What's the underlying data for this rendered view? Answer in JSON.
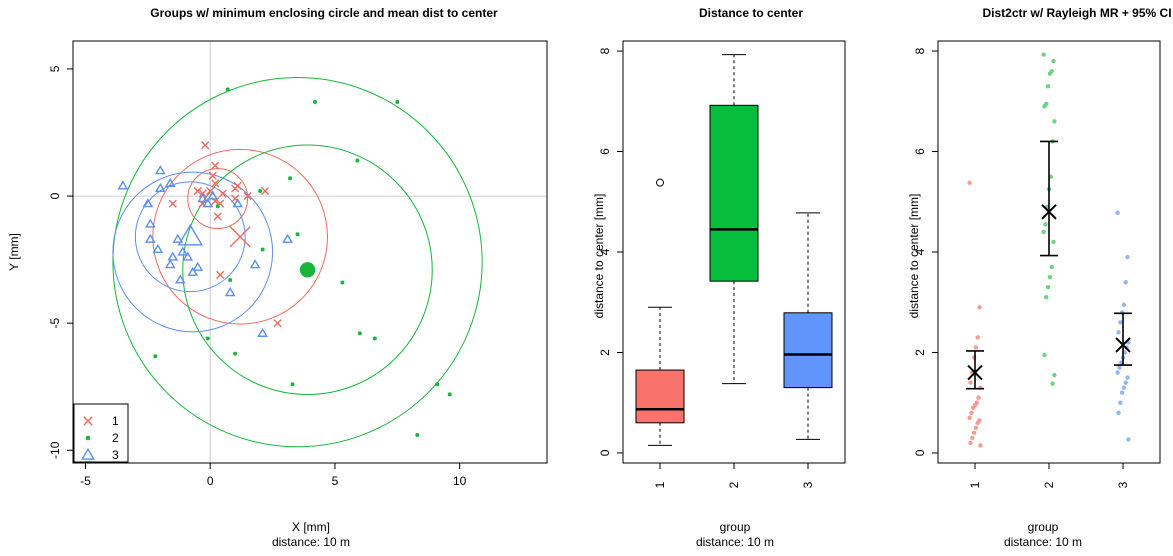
{
  "chart_data": [
    {
      "type": "scatter",
      "title": "Groups w/ minimum enclosing circle and mean dist to center",
      "xlabel": "X [mm]",
      "subtitle": "distance: 10 m",
      "ylabel": "Y [mm]",
      "xlim": [
        -5.5,
        13.5
      ],
      "ylim": [
        -10.5,
        6.1
      ],
      "xticks": [
        "-5",
        "0",
        "5",
        "10"
      ],
      "xtick_values": [
        -5,
        0,
        5,
        10
      ],
      "yticks": [
        "-10",
        "-5",
        "0",
        "5"
      ],
      "ytick_values": [
        -10,
        -5,
        0,
        5
      ],
      "reference_lines": {
        "x": 0,
        "y": 0
      },
      "legend": {
        "placement": "bottom-left",
        "entries": [
          {
            "label": "1",
            "marker": "x",
            "color": "#ee6a5f"
          },
          {
            "label": "2",
            "marker": "dot",
            "color": "#17b53a"
          },
          {
            "label": "3",
            "marker": "triangle",
            "color": "#5b8ff0"
          }
        ]
      },
      "series": [
        {
          "name": "1",
          "marker": "x",
          "color": "#ee6a5f",
          "points": [
            [
              -0.3,
              0.1
            ],
            [
              0,
              0.2
            ],
            [
              0.2,
              0.5
            ],
            [
              0.5,
              0.1
            ],
            [
              0.2,
              -0.2
            ],
            [
              0.4,
              -0.3
            ],
            [
              1.1,
              0.4
            ],
            [
              1.0,
              0.3
            ],
            [
              -0.5,
              0.2
            ],
            [
              0.1,
              0.8
            ],
            [
              0.2,
              1.2
            ],
            [
              1.0,
              -0.1
            ],
            [
              2.2,
              0.2
            ],
            [
              -0.3,
              -0.3
            ],
            [
              -1.5,
              -0.3
            ],
            [
              0.3,
              -0.8
            ],
            [
              -0.2,
              2.0
            ],
            [
              0.4,
              -3.1
            ],
            [
              1.5,
              0
            ],
            [
              2.7,
              -5.0
            ]
          ],
          "center": [
            0.3,
            -0.1
          ],
          "mean_center": [
            1.2,
            -1.6
          ],
          "mean_dist_circle": {
            "center": [
              0.3,
              -0.1
            ],
            "radius": 1.2
          },
          "min_enclosing_circle": {
            "center": [
              1.2,
              -1.6
            ],
            "radius": 3.5
          }
        },
        {
          "name": "2",
          "marker": "dot",
          "color": "#17b53a",
          "points": [
            [
              0.7,
              4.2
            ],
            [
              4.2,
              3.7
            ],
            [
              7.5,
              3.7
            ],
            [
              5.9,
              1.4
            ],
            [
              2.0,
              0.2
            ],
            [
              3.2,
              0.7
            ],
            [
              0.3,
              -0.4
            ],
            [
              3.5,
              -1.5
            ],
            [
              2.1,
              -2.1
            ],
            [
              0.8,
              -3.3
            ],
            [
              5.3,
              -3.4
            ],
            [
              1.0,
              -6.2
            ],
            [
              -0.1,
              -5.6
            ],
            [
              6.0,
              -5.4
            ],
            [
              6.6,
              -5.6
            ],
            [
              -2.2,
              -6.3
            ],
            [
              3.3,
              -7.4
            ],
            [
              9.1,
              -7.4
            ],
            [
              9.6,
              -7.8
            ],
            [
              8.3,
              -9.4
            ]
          ],
          "center": [
            3.9,
            -2.9
          ],
          "mean_center": [
            3.9,
            -2.9
          ],
          "mean_dist_circle": {
            "center": [
              3.9,
              -2.9
            ],
            "radius": 5.0
          },
          "min_enclosing_circle": {
            "center": [
              3.5,
              -2.6
            ],
            "radius": 7.4
          }
        },
        {
          "name": "3",
          "marker": "triangle",
          "color": "#5b8ff0",
          "points": [
            [
              -3.5,
              0.4
            ],
            [
              -2.0,
              1.0
            ],
            [
              -1.6,
              0.5
            ],
            [
              -2.0,
              0.3
            ],
            [
              -2.5,
              -0.3
            ],
            [
              -0.3,
              -0.1
            ],
            [
              -0.1,
              -0.3
            ],
            [
              1.1,
              -0.3
            ],
            [
              0.1,
              0
            ],
            [
              -2.4,
              -1.1
            ],
            [
              -2.4,
              -1.7
            ],
            [
              -2.1,
              -2.1
            ],
            [
              -1.3,
              -1.7
            ],
            [
              -1.1,
              -2.2
            ],
            [
              -0.9,
              -2.4
            ],
            [
              -1.5,
              -2.4
            ],
            [
              -1.6,
              -2.7
            ],
            [
              -0.5,
              -2.8
            ],
            [
              -0.7,
              -3.0
            ],
            [
              0.8,
              -3.8
            ],
            [
              1.8,
              -2.7
            ],
            [
              3.1,
              -1.7
            ],
            [
              -1.2,
              -3.3
            ],
            [
              2.1,
              -5.4
            ]
          ],
          "center": [
            -0.8,
            -1.6
          ],
          "mean_center": [
            -0.8,
            -1.6
          ],
          "mean_dist_circle": {
            "center": [
              -0.8,
              -1.6
            ],
            "radius": 2.2
          },
          "min_enclosing_circle": {
            "center": [
              -0.7,
              -2.2
            ],
            "radius": 3.2
          }
        }
      ]
    },
    {
      "type": "box",
      "title": "Distance to center",
      "xlabel": "group",
      "subtitle": "distance: 10 m",
      "ylabel": "distance to center [mm]",
      "ylim": [
        -0.2,
        8.2
      ],
      "yticks": [
        "0",
        "2",
        "4",
        "6",
        "8"
      ],
      "ytick_values": [
        0,
        2,
        4,
        6,
        8
      ],
      "categories": [
        "1",
        "2",
        "3"
      ],
      "boxes": [
        {
          "category": "1",
          "color": "#f7736b",
          "whisker_low": 0.15,
          "q1": 0.6,
          "median": 0.87,
          "q3": 1.65,
          "whisker_high": 2.9,
          "outliers": [
            5.38
          ]
        },
        {
          "category": "2",
          "color": "#06be3c",
          "whisker_low": 1.38,
          "q1": 3.42,
          "median": 4.45,
          "q3": 6.92,
          "whisker_high": 7.93,
          "outliers": []
        },
        {
          "category": "3",
          "color": "#6195fb",
          "whisker_low": 0.27,
          "q1": 1.3,
          "median": 1.96,
          "q3": 2.79,
          "whisker_high": 4.78,
          "outliers": []
        }
      ]
    },
    {
      "type": "strip",
      "title": "Dist2ctr w/ Rayleigh MR + 95% CI",
      "xlabel": "group",
      "subtitle": "distance: 10 m",
      "ylabel": "distance to center [mm]",
      "ylim": [
        -0.2,
        8.2
      ],
      "yticks": [
        "0",
        "2",
        "4",
        "6",
        "8"
      ],
      "ytick_values": [
        0,
        2,
        4,
        6,
        8
      ],
      "categories": [
        "1",
        "2",
        "3"
      ],
      "groups": [
        {
          "category": "1",
          "color": "#f7918a",
          "values": [
            5.38,
            2.9,
            2.3,
            2.1,
            1.9,
            1.6,
            1.4,
            1.3,
            1.1,
            1.0,
            0.95,
            0.9,
            0.8,
            0.7,
            0.65,
            0.6,
            0.5,
            0.4,
            0.3,
            0.2,
            0.15
          ],
          "estimate": 1.6,
          "ci": [
            1.28,
            2.03
          ]
        },
        {
          "category": "2",
          "color": "#5fcf72",
          "values": [
            7.93,
            7.8,
            7.6,
            7.55,
            7.3,
            6.95,
            6.9,
            6.6,
            6.2,
            5.5,
            5.25,
            4.9,
            4.55,
            4.4,
            4.2,
            3.7,
            3.5,
            3.3,
            3.1,
            1.95,
            1.55,
            1.38
          ],
          "estimate": 4.8,
          "ci": [
            3.93,
            6.2
          ]
        },
        {
          "category": "3",
          "color": "#86aef5",
          "values": [
            4.78,
            3.9,
            3.4,
            2.95,
            2.8,
            2.6,
            2.4,
            2.2,
            2.1,
            2.0,
            1.9,
            1.8,
            1.7,
            1.6,
            1.5,
            1.4,
            1.3,
            1.2,
            1.0,
            0.8,
            0.27
          ],
          "estimate": 2.15,
          "ci": [
            1.75,
            2.78
          ]
        }
      ]
    }
  ]
}
